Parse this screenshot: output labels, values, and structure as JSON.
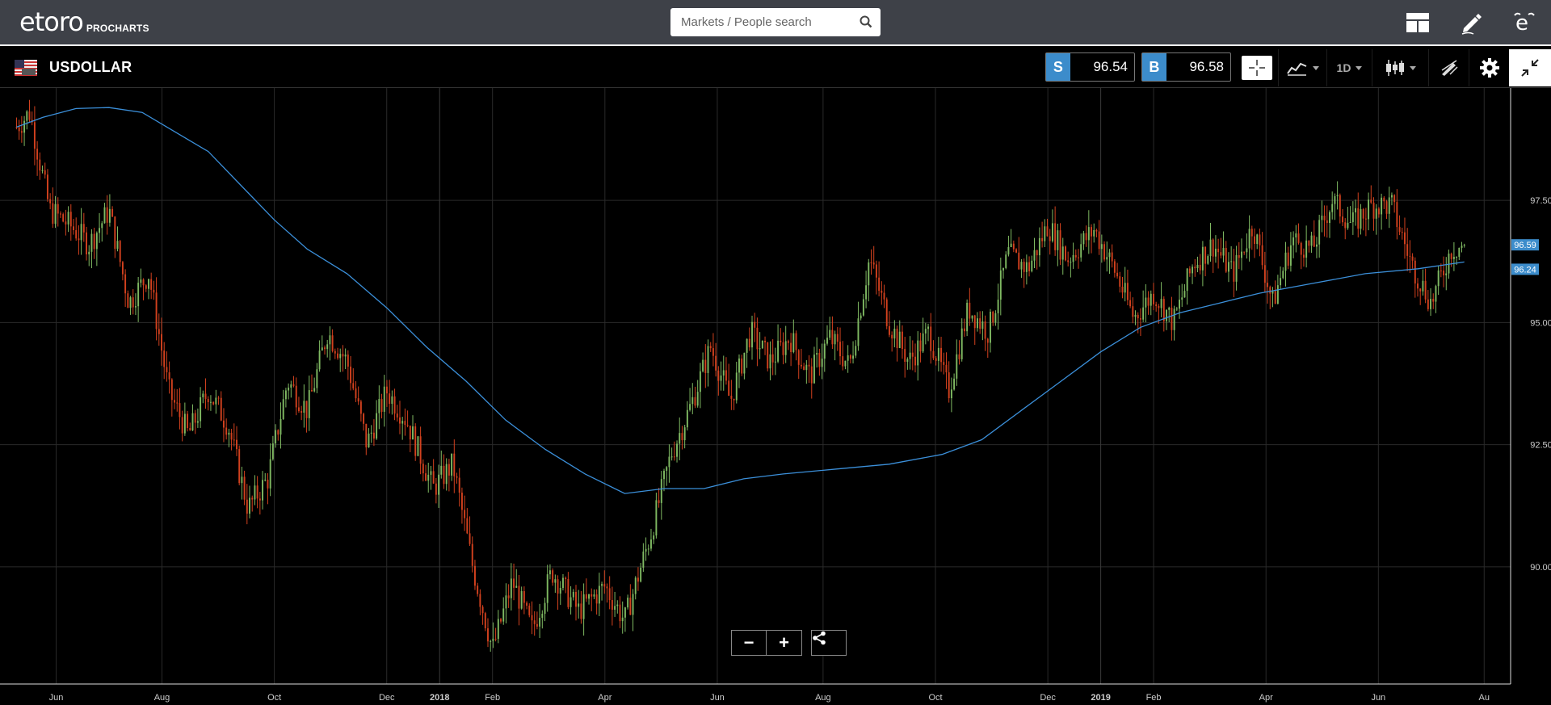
{
  "brand": {
    "name": "etoro",
    "product": "PROCHARTS"
  },
  "search": {
    "placeholder": "Markets / People search",
    "value": ""
  },
  "header_icons": [
    "layout-icon",
    "pencil-icon",
    "etoro-icon"
  ],
  "instrument": {
    "symbol": "USDOLLAR",
    "flag": "us-flag-icon"
  },
  "sell": {
    "label": "S",
    "price": "96.54"
  },
  "buy": {
    "label": "B",
    "price": "96.58"
  },
  "toolbar": {
    "period": "1D"
  },
  "colors": {
    "accent": "#3c8ccb",
    "up": "#7fb962",
    "down": "#d2411e",
    "ma": "#3b8fd9",
    "grid": "#2a2a2a"
  },
  "zoom": {
    "out": "−",
    "in": "+"
  },
  "chart_data": {
    "type": "candlestick",
    "instrument": "USDOLLAR",
    "timeframe": "1D",
    "y_ticks": [
      "97.50",
      "95.00",
      "92.50",
      "90.00"
    ],
    "y_tick_values": [
      97.5,
      95.0,
      92.5,
      90.0
    ],
    "ylim": [
      87.6,
      99.8
    ],
    "x_ticks": [
      "Jun",
      "Aug",
      "Oct",
      "Dec",
      "2018",
      "Feb",
      "Apr",
      "Jun",
      "Aug",
      "Oct",
      "Dec",
      "2019",
      "Feb",
      "Apr",
      "Jun",
      "Au"
    ],
    "last_price": "96.59",
    "ma_value": "96.24",
    "price_path": [
      [
        2017.36,
        99.0
      ],
      [
        2017.38,
        99.3
      ],
      [
        2017.41,
        97.3
      ],
      [
        2017.44,
        97.0
      ],
      [
        2017.47,
        96.6
      ],
      [
        2017.5,
        97.3
      ],
      [
        2017.53,
        95.4
      ],
      [
        2017.56,
        96.0
      ],
      [
        2017.59,
        93.6
      ],
      [
        2017.62,
        92.7
      ],
      [
        2017.65,
        93.6
      ],
      [
        2017.68,
        92.9
      ],
      [
        2017.71,
        91.2
      ],
      [
        2017.74,
        91.8
      ],
      [
        2017.77,
        93.8
      ],
      [
        2017.8,
        93.2
      ],
      [
        2017.83,
        94.8
      ],
      [
        2017.86,
        94.2
      ],
      [
        2017.89,
        92.5
      ],
      [
        2017.92,
        93.6
      ],
      [
        2017.95,
        93.0
      ],
      [
        2017.99,
        91.6
      ],
      [
        2018.02,
        92.1
      ],
      [
        2018.05,
        90.0
      ],
      [
        2018.08,
        88.3
      ],
      [
        2018.11,
        89.7
      ],
      [
        2018.14,
        88.7
      ],
      [
        2018.17,
        89.9
      ],
      [
        2018.21,
        89.1
      ],
      [
        2018.25,
        89.6
      ],
      [
        2018.28,
        88.9
      ],
      [
        2018.32,
        90.7
      ],
      [
        2018.35,
        92.3
      ],
      [
        2018.38,
        93.3
      ],
      [
        2018.41,
        94.5
      ],
      [
        2018.44,
        93.4
      ],
      [
        2018.47,
        94.8
      ],
      [
        2018.5,
        94.2
      ],
      [
        2018.53,
        94.7
      ],
      [
        2018.56,
        93.9
      ],
      [
        2018.59,
        94.7
      ],
      [
        2018.62,
        94.1
      ],
      [
        2018.65,
        96.3
      ],
      [
        2018.68,
        95.0
      ],
      [
        2018.71,
        94.2
      ],
      [
        2018.74,
        94.8
      ],
      [
        2018.77,
        93.6
      ],
      [
        2018.8,
        95.3
      ],
      [
        2018.83,
        94.8
      ],
      [
        2018.86,
        96.4
      ],
      [
        2018.89,
        96.1
      ],
      [
        2018.92,
        97.0
      ],
      [
        2018.95,
        96.3
      ],
      [
        2018.99,
        96.9
      ],
      [
        2019.02,
        96.1
      ],
      [
        2019.05,
        95.1
      ],
      [
        2019.08,
        95.6
      ],
      [
        2019.11,
        95.0
      ],
      [
        2019.14,
        96.2
      ],
      [
        2019.17,
        96.6
      ],
      [
        2019.2,
        96.0
      ],
      [
        2019.23,
        97.0
      ],
      [
        2019.26,
        95.4
      ],
      [
        2019.29,
        96.7
      ],
      [
        2019.32,
        96.5
      ],
      [
        2019.35,
        97.5
      ],
      [
        2019.38,
        97.0
      ],
      [
        2019.41,
        97.4
      ],
      [
        2019.44,
        97.4
      ],
      [
        2019.47,
        96.2
      ],
      [
        2019.5,
        95.4
      ],
      [
        2019.53,
        96.5
      ],
      [
        2019.55,
        96.59
      ]
    ],
    "ma_path": [
      [
        2017.36,
        99.0
      ],
      [
        2017.4,
        99.2
      ],
      [
        2017.45,
        99.38
      ],
      [
        2017.5,
        99.4
      ],
      [
        2017.55,
        99.3
      ],
      [
        2017.6,
        98.9
      ],
      [
        2017.65,
        98.5
      ],
      [
        2017.7,
        97.8
      ],
      [
        2017.75,
        97.1
      ],
      [
        2017.8,
        96.5
      ],
      [
        2017.86,
        96.0
      ],
      [
        2017.92,
        95.3
      ],
      [
        2017.98,
        94.5
      ],
      [
        2018.04,
        93.8
      ],
      [
        2018.1,
        93.0
      ],
      [
        2018.16,
        92.4
      ],
      [
        2018.22,
        91.9
      ],
      [
        2018.28,
        91.5
      ],
      [
        2018.34,
        91.6
      ],
      [
        2018.4,
        91.6
      ],
      [
        2018.46,
        91.8
      ],
      [
        2018.52,
        91.9
      ],
      [
        2018.6,
        92.0
      ],
      [
        2018.68,
        92.1
      ],
      [
        2018.76,
        92.3
      ],
      [
        2018.82,
        92.6
      ],
      [
        2018.88,
        93.2
      ],
      [
        2018.94,
        93.8
      ],
      [
        2019.0,
        94.4
      ],
      [
        2019.06,
        94.9
      ],
      [
        2019.12,
        95.2
      ],
      [
        2019.18,
        95.4
      ],
      [
        2019.24,
        95.6
      ],
      [
        2019.32,
        95.8
      ],
      [
        2019.4,
        96.0
      ],
      [
        2019.48,
        96.1
      ],
      [
        2019.55,
        96.24
      ]
    ]
  }
}
